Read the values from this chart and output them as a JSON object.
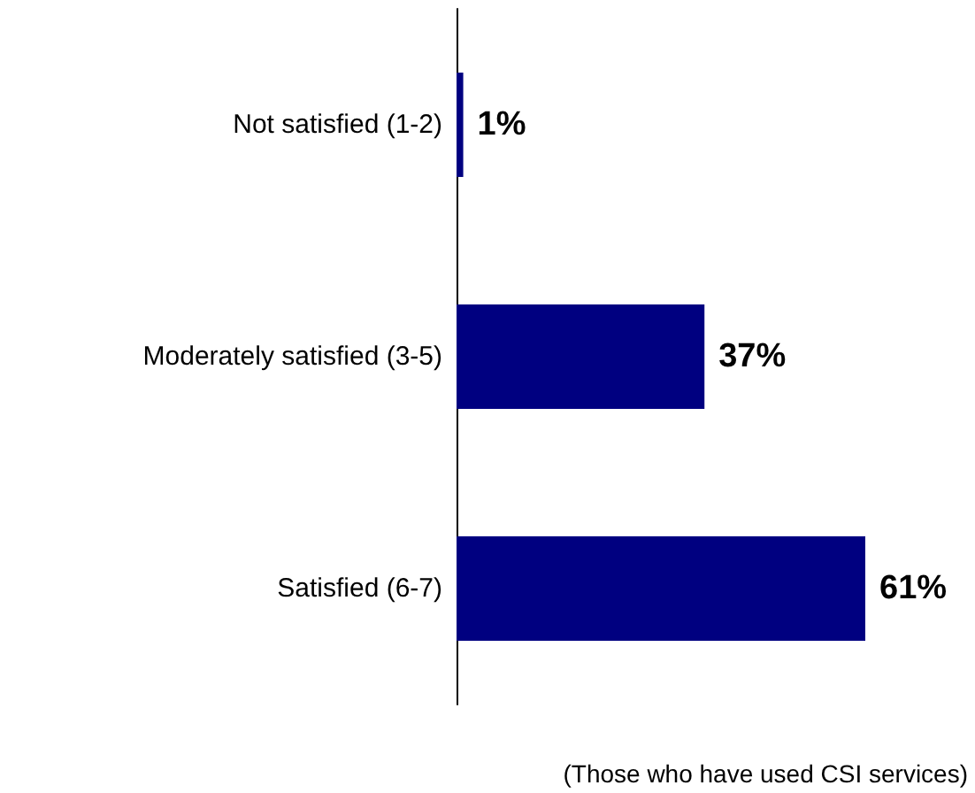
{
  "chart_data": {
    "type": "bar",
    "orientation": "horizontal",
    "categories": [
      "Not satisfied (1-2)",
      "Moderately satisfied (3-5)",
      "Satisfied (6-7)"
    ],
    "values": [
      1,
      37,
      61
    ],
    "color": "#000080",
    "value_labels": [
      "1%",
      "37%",
      "61%"
    ],
    "annotations": [
      "(Those who have used CSI services)"
    ]
  }
}
